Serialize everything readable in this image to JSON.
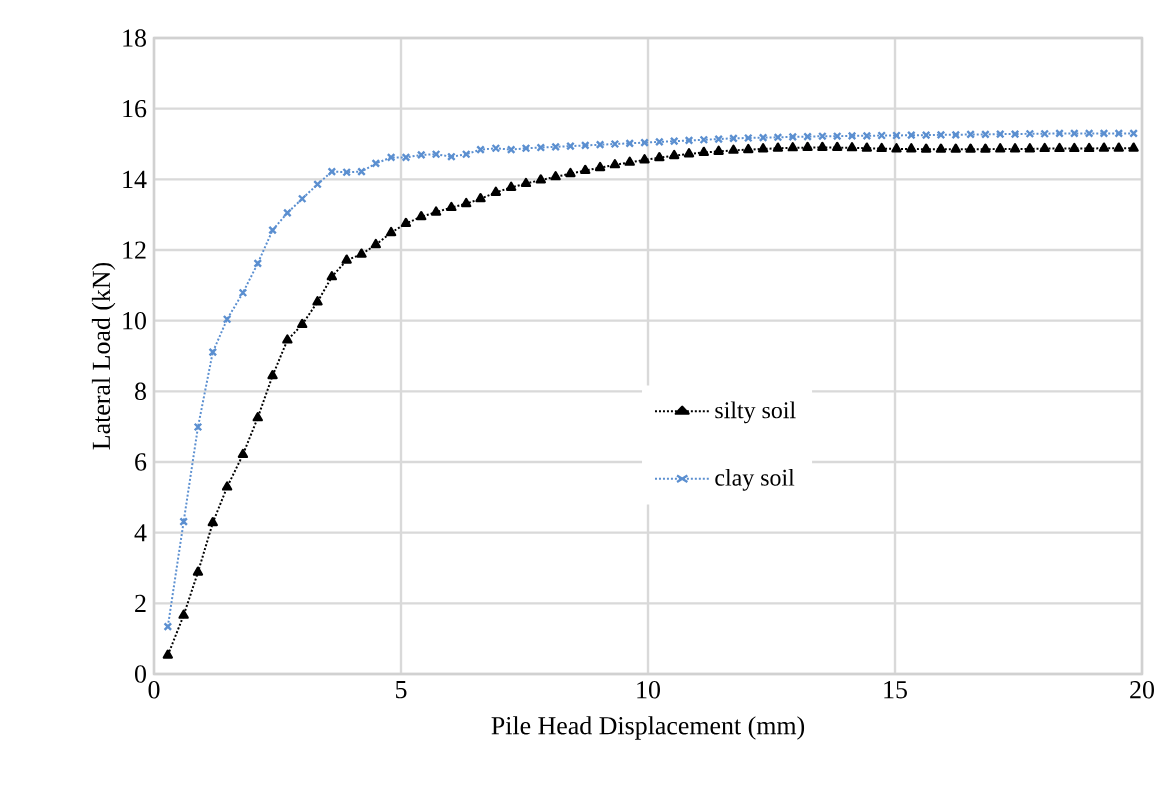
{
  "chart_data": {
    "type": "line",
    "xlabel": "Pile Head Displacement (mm)",
    "ylabel": "Lateral Load (kN)",
    "x": [
      0.28,
      0.6,
      0.89,
      1.19,
      1.48,
      1.8,
      2.1,
      2.4,
      2.7,
      3.0,
      3.31,
      3.6,
      3.9,
      4.2,
      4.49,
      4.8,
      5.1,
      5.41,
      5.71,
      6.02,
      6.32,
      6.61,
      6.92,
      7.23,
      7.53,
      7.83,
      8.13,
      8.43,
      8.73,
      9.03,
      9.33,
      9.63,
      9.93,
      10.23,
      10.53,
      10.83,
      11.13,
      11.43,
      11.73,
      12.03,
      12.33,
      12.63,
      12.93,
      13.23,
      13.53,
      13.83,
      14.13,
      14.43,
      14.73,
      15.03,
      15.33,
      15.63,
      15.93,
      16.23,
      16.53,
      16.83,
      17.13,
      17.43,
      17.73,
      18.03,
      18.33,
      18.63,
      18.93,
      19.23,
      19.53,
      19.83
    ],
    "series": [
      {
        "name": "silty soil",
        "color": "#000000",
        "marker": "triangle",
        "line_style": "dotted",
        "values": [
          0.53,
          1.66,
          2.88,
          4.28,
          5.29,
          6.21,
          7.25,
          8.44,
          9.45,
          9.89,
          10.53,
          11.24,
          11.71,
          11.88,
          12.15,
          12.49,
          12.75,
          12.94,
          13.07,
          13.2,
          13.31,
          13.45,
          13.63,
          13.77,
          13.88,
          13.98,
          14.07,
          14.16,
          14.25,
          14.33,
          14.41,
          14.48,
          14.55,
          14.61,
          14.67,
          14.72,
          14.76,
          14.79,
          14.82,
          14.84,
          14.86,
          14.88,
          14.89,
          14.9,
          14.9,
          14.9,
          14.89,
          14.88,
          14.87,
          14.86,
          14.86,
          14.85,
          14.85,
          14.85,
          14.85,
          14.85,
          14.86,
          14.86,
          14.86,
          14.87,
          14.87,
          14.87,
          14.87,
          14.88,
          14.88,
          14.88
        ]
      },
      {
        "name": "clay soil",
        "color": "#5b8fd0",
        "marker": "cross",
        "line_style": "dotted",
        "values": [
          1.34,
          4.31,
          6.99,
          9.11,
          10.04,
          10.79,
          11.62,
          12.56,
          13.05,
          13.45,
          13.86,
          14.22,
          14.2,
          14.22,
          14.45,
          14.62,
          14.62,
          14.69,
          14.71,
          14.64,
          14.71,
          14.84,
          14.88,
          14.84,
          14.88,
          14.9,
          14.92,
          14.94,
          14.96,
          14.98,
          15.0,
          15.02,
          15.04,
          15.06,
          15.08,
          15.1,
          15.12,
          15.14,
          15.16,
          15.17,
          15.18,
          15.19,
          15.2,
          15.21,
          15.22,
          15.22,
          15.23,
          15.23,
          15.24,
          15.24,
          15.25,
          15.25,
          15.26,
          15.26,
          15.27,
          15.27,
          15.28,
          15.28,
          15.29,
          15.29,
          15.3,
          15.3,
          15.3,
          15.3,
          15.3,
          15.3
        ]
      }
    ],
    "xlim": [
      0,
      20
    ],
    "xticks": [
      0,
      5,
      10,
      15,
      20
    ],
    "ylim": [
      0,
      18
    ],
    "yticks": [
      0,
      2,
      4,
      6,
      8,
      10,
      12,
      14,
      16,
      18
    ],
    "grid": true,
    "legend": "right"
  }
}
